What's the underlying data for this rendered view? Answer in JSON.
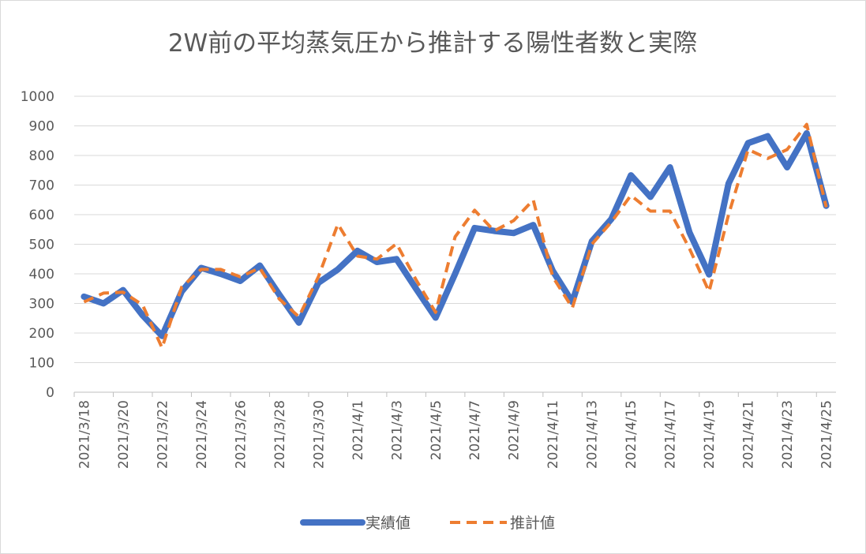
{
  "chart_data": {
    "type": "line",
    "title": "2W前の平均蒸気圧から推計する陽性者数と実際",
    "xlabel": "",
    "ylabel": "",
    "ylim": [
      0,
      1000
    ],
    "yticks": [
      0,
      100,
      200,
      300,
      400,
      500,
      600,
      700,
      800,
      900,
      1000
    ],
    "x": [
      "2021/3/18",
      "2021/3/19",
      "2021/3/20",
      "2021/3/21",
      "2021/3/22",
      "2021/3/23",
      "2021/3/24",
      "2021/3/25",
      "2021/3/26",
      "2021/3/27",
      "2021/3/28",
      "2021/3/29",
      "2021/3/30",
      "2021/3/31",
      "2021/4/1",
      "2021/4/2",
      "2021/4/3",
      "2021/4/4",
      "2021/4/5",
      "2021/4/6",
      "2021/4/7",
      "2021/4/8",
      "2021/4/9",
      "2021/4/10",
      "2021/4/11",
      "2021/4/12",
      "2021/4/13",
      "2021/4/14",
      "2021/4/15",
      "2021/4/16",
      "2021/4/17",
      "2021/4/18",
      "2021/4/19",
      "2021/4/20",
      "2021/4/21",
      "2021/4/22",
      "2021/4/23",
      "2021/4/24",
      "2021/4/25"
    ],
    "xtick_labels": [
      "2021/3/18",
      "2021/3/20",
      "2021/3/22",
      "2021/3/24",
      "2021/3/26",
      "2021/3/28",
      "2021/3/30",
      "2021/4/1",
      "2021/4/3",
      "2021/4/5",
      "2021/4/7",
      "2021/4/9",
      "2021/4/11",
      "2021/4/13",
      "2021/4/15",
      "2021/4/17",
      "2021/4/19",
      "2021/4/21",
      "2021/4/23",
      "2021/4/25"
    ],
    "series": [
      {
        "name": "実績値",
        "color": "#4472C4",
        "style": "solid",
        "values": [
          323,
          300,
          345,
          260,
          190,
          340,
          420,
          400,
          376,
          428,
          330,
          235,
          370,
          415,
          478,
          440,
          450,
          350,
          252,
          400,
          555,
          545,
          538,
          565,
          410,
          305,
          510,
          585,
          733,
          660,
          760,
          540,
          398,
          705,
          842,
          865,
          760,
          875,
          630
        ]
      },
      {
        "name": "推計値",
        "color": "#ED7D31",
        "style": "dashed",
        "values": [
          305,
          335,
          338,
          295,
          150,
          355,
          415,
          415,
          390,
          420,
          315,
          255,
          390,
          568,
          460,
          450,
          502,
          380,
          270,
          525,
          615,
          545,
          580,
          650,
          390,
          285,
          500,
          575,
          665,
          612,
          612,
          485,
          340,
          600,
          820,
          790,
          820,
          905,
          625
        ]
      }
    ],
    "legend_position": "bottom",
    "grid": true
  }
}
